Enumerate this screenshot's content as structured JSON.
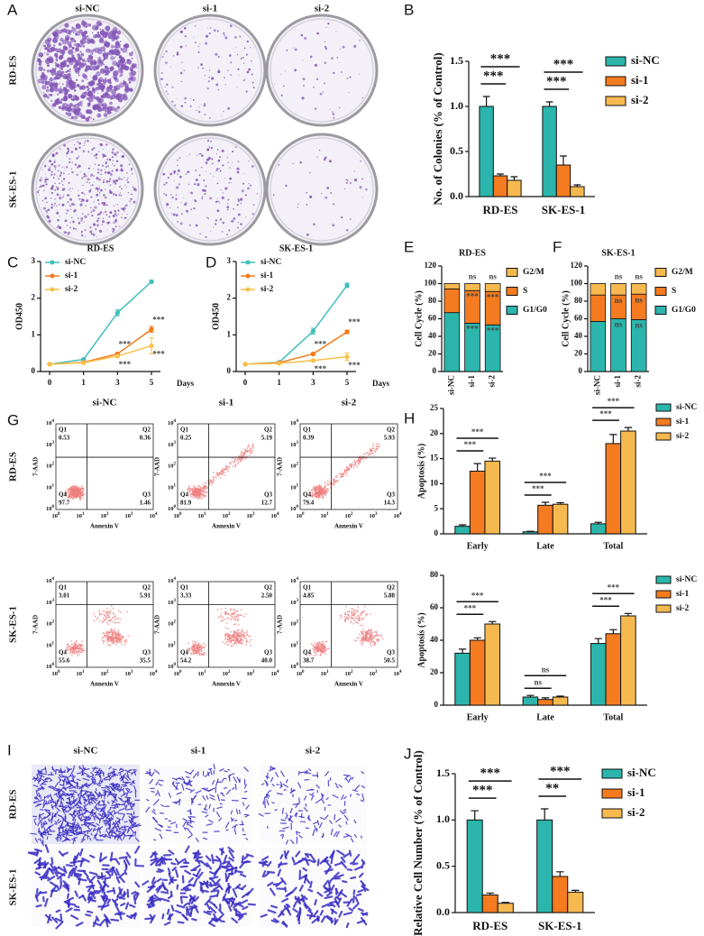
{
  "chart_data": [
    {
      "panel": "B",
      "type": "bar",
      "ylabel": "No. of Colonies (% of Control)",
      "categories": [
        "RD-ES",
        "SK-ES-1"
      ],
      "series": [
        {
          "name": "si-NC",
          "color": "#2bb5ac",
          "values": [
            1.0,
            1.0
          ],
          "errors": [
            0.11,
            0.05
          ]
        },
        {
          "name": "si-1",
          "color": "#f47b20",
          "values": [
            0.23,
            0.35
          ],
          "errors": [
            0.02,
            0.1
          ]
        },
        {
          "name": "si-2",
          "color": "#f6b950",
          "values": [
            0.18,
            0.11
          ],
          "errors": [
            0.04,
            0.02
          ]
        }
      ],
      "ylim": [
        0,
        1.5
      ],
      "yticks": [
        {
          "value": 0,
          "label": "0.0"
        },
        {
          "value": 0.5,
          "label": "0.5"
        },
        {
          "value": 1,
          "label": "1.0"
        },
        {
          "value": 1.5,
          "label": "1.5"
        }
      ],
      "significance": [
        [
          "***",
          "***"
        ],
        [
          "***",
          "***"
        ]
      ]
    },
    {
      "panel": "C",
      "type": "line",
      "title": "RD-ES",
      "xlabel": "Days",
      "ylabel": "OD450",
      "categories": [
        "0",
        "1",
        "3",
        "5"
      ],
      "series": [
        {
          "name": "si-NC",
          "color": "#3cc0bc",
          "values": [
            0.2,
            0.33,
            1.6,
            2.45
          ],
          "errors": [
            0.02,
            0.03,
            0.08,
            0.04
          ]
        },
        {
          "name": "si-1",
          "color": "#f27a1a",
          "values": [
            0.2,
            0.25,
            0.48,
            1.15
          ],
          "errors": [
            0.01,
            0.02,
            0.04,
            0.08
          ],
          "significance": [
            null,
            null,
            "***",
            "***"
          ]
        },
        {
          "name": "si-2",
          "color": "#f7c04a",
          "values": [
            0.2,
            0.24,
            0.42,
            0.7
          ],
          "errors": [
            0.01,
            0.02,
            0.03,
            0.22
          ],
          "significance": [
            null,
            null,
            "***",
            "***"
          ]
        }
      ],
      "ylim": [
        0,
        3
      ],
      "yticks": [
        0,
        1,
        2,
        3
      ]
    },
    {
      "panel": "D",
      "type": "line",
      "title": "SK-ES-1",
      "xlabel": "Days",
      "ylabel": "OD450",
      "categories": [
        "0",
        "1",
        "3",
        "5"
      ],
      "series": [
        {
          "name": "si-NC",
          "color": "#3cc0bc",
          "values": [
            0.2,
            0.25,
            1.1,
            2.35
          ],
          "errors": [
            0.02,
            0.02,
            0.08,
            0.06
          ]
        },
        {
          "name": "si-1",
          "color": "#f27a1a",
          "values": [
            0.2,
            0.24,
            0.48,
            1.08
          ],
          "errors": [
            0.01,
            0.01,
            0.03,
            0.05
          ],
          "significance": [
            null,
            null,
            "***",
            "***"
          ]
        },
        {
          "name": "si-2",
          "color": "#f7c04a",
          "values": [
            0.2,
            0.22,
            0.3,
            0.4
          ],
          "errors": [
            0.01,
            0.01,
            0.03,
            0.1
          ],
          "significance": [
            null,
            null,
            "***",
            "***"
          ]
        }
      ],
      "ylim": [
        0,
        3
      ],
      "yticks": [
        0,
        1,
        2,
        3
      ]
    },
    {
      "panel": "E",
      "type": "stacked_bar",
      "title": "RD-ES",
      "ylabel": "Cell Cycle (%)",
      "categories": [
        "si-NC",
        "si-1",
        "si-2"
      ],
      "series": [
        {
          "name": "G1/G0",
          "color": "#2bb5ac",
          "values": [
            67,
            55,
            53
          ],
          "significance": [
            null,
            "***",
            "***"
          ]
        },
        {
          "name": "S",
          "color": "#f47b20",
          "values": [
            27,
            37,
            38
          ],
          "significance": [
            null,
            "***",
            "***"
          ]
        },
        {
          "name": "G2/M",
          "color": "#f6b950",
          "values": [
            6,
            8,
            9
          ],
          "significance": [
            null,
            "ns",
            "ns"
          ]
        }
      ],
      "ylim": [
        0,
        120
      ],
      "yticks": [
        0,
        20,
        40,
        60,
        80,
        100,
        120
      ]
    },
    {
      "panel": "F",
      "type": "stacked_bar",
      "title": "SK-ES-1",
      "ylabel": "Cell Cycle (%)",
      "categories": [
        "si-NC",
        "si-1",
        "si-2"
      ],
      "series": [
        {
          "name": "G1/G0",
          "color": "#2bb5ac",
          "values": [
            57,
            60,
            59
          ],
          "significance": [
            null,
            "ns",
            "ns"
          ]
        },
        {
          "name": "S",
          "color": "#f47b20",
          "values": [
            30,
            27,
            29
          ],
          "significance": [
            null,
            "ns",
            "ns"
          ]
        },
        {
          "name": "G2/M",
          "color": "#f6b950",
          "values": [
            13,
            13,
            12
          ],
          "significance": [
            null,
            "ns",
            "ns"
          ]
        }
      ],
      "ylim": [
        0,
        120
      ],
      "yticks": [
        0,
        20,
        40,
        60,
        80,
        100,
        120
      ]
    },
    {
      "panel": "H",
      "type": "bar",
      "ylabel": "Apoptosis (%)",
      "categories": [
        "Early",
        "Late",
        "Total"
      ],
      "series": [
        {
          "name": "si-NC",
          "color": "#2bb5ac",
          "values": [
            1.5,
            0.4,
            2
          ],
          "errors": [
            0.3,
            0.1,
            0.3
          ]
        },
        {
          "name": "si-1",
          "color": "#f47b20",
          "values": [
            12.5,
            5.7,
            18
          ],
          "errors": [
            1.5,
            0.6,
            1.8
          ]
        },
        {
          "name": "si-2",
          "color": "#f6b950",
          "values": [
            14.5,
            5.9,
            20.5
          ],
          "errors": [
            0.6,
            0.3,
            0.7
          ]
        }
      ],
      "ylim": [
        0,
        25
      ],
      "yticks": [
        0,
        5,
        10,
        15,
        20,
        25
      ],
      "significance": [
        [
          "***",
          "***"
        ],
        [
          "***",
          "***"
        ],
        [
          "***",
          "***"
        ]
      ]
    },
    {
      "type": "bar",
      "ylabel": "Apoptosis (%)",
      "categories": [
        "Early",
        "Late",
        "Total"
      ],
      "series": [
        {
          "name": "si-NC",
          "color": "#2bb5ac",
          "values": [
            32,
            5,
            38
          ],
          "errors": [
            2.5,
            1,
            3
          ]
        },
        {
          "name": "si-1",
          "color": "#f47b20",
          "values": [
            40,
            3.5,
            44
          ],
          "errors": [
            1.5,
            1,
            2.5
          ]
        },
        {
          "name": "si-2",
          "color": "#f6b950",
          "values": [
            50,
            5,
            55
          ],
          "errors": [
            1.5,
            0.6,
            1.5
          ]
        }
      ],
      "ylim": [
        0,
        80
      ],
      "yticks": [
        0,
        20,
        40,
        60,
        80
      ],
      "significance": [
        [
          "***",
          "***"
        ],
        [
          "ns",
          "ns"
        ],
        [
          "***",
          "***"
        ]
      ]
    },
    {
      "panel": "J",
      "type": "bar",
      "ylabel": "Relative Cell Number (% of Control)",
      "categories": [
        "RD-ES",
        "SK-ES-1"
      ],
      "series": [
        {
          "name": "si-NC",
          "color": "#2bb5ac",
          "values": [
            1.0,
            1.0
          ],
          "errors": [
            0.1,
            0.12
          ]
        },
        {
          "name": "si-1",
          "color": "#f47b20",
          "values": [
            0.19,
            0.39
          ],
          "errors": [
            0.02,
            0.05
          ]
        },
        {
          "name": "si-2",
          "color": "#f6b950",
          "values": [
            0.1,
            0.22
          ],
          "errors": [
            0.01,
            0.02
          ]
        }
      ],
      "ylim": [
        0,
        1.5
      ],
      "yticks": [
        {
          "value": 0,
          "label": "0.0"
        },
        {
          "value": 0.5,
          "label": "0.5"
        },
        {
          "value": 1,
          "label": "1.0"
        },
        {
          "value": 1.5,
          "label": "1.5"
        }
      ],
      "significance": [
        [
          "***",
          "***"
        ],
        [
          "**",
          "***"
        ]
      ]
    }
  ],
  "image_panels": [
    {
      "panel": "A",
      "columns": [
        "si-NC",
        "si-1",
        "si-2"
      ],
      "rows": [
        "RD-ES",
        "SK-ES-1"
      ]
    },
    {
      "panel": "G",
      "columns": [
        "si-NC",
        "si-1",
        "si-2"
      ],
      "rows": [
        "RD-ES",
        "SK-ES-1"
      ],
      "xlabel": "Annexin V",
      "ylabel": "7-AAD",
      "tick_base": "10",
      "tick_exponents": [
        "0",
        "1",
        "2",
        "3",
        "4"
      ],
      "quadrants": [
        "Q1",
        "Q2",
        "Q3",
        "Q4"
      ],
      "plots": [
        [
          [
            "0.53",
            "0.36",
            "1.46",
            "97.7"
          ],
          [
            "0.25",
            "5.19",
            "12.7",
            "81.9"
          ],
          [
            "0.39",
            "5.93",
            "14.3",
            "79.4"
          ]
        ],
        [
          [
            "3.01",
            "5.91",
            "35.5",
            "55.6"
          ],
          [
            "3.33",
            "2.50",
            "40.0",
            "54.2"
          ],
          [
            "4.85",
            "5.88",
            "50.5",
            "38.7"
          ]
        ]
      ]
    },
    {
      "panel": "I",
      "columns": [
        "si-NC",
        "si-1",
        "si-2"
      ],
      "rows": [
        "RD-ES",
        "SK-ES-1"
      ]
    }
  ]
}
